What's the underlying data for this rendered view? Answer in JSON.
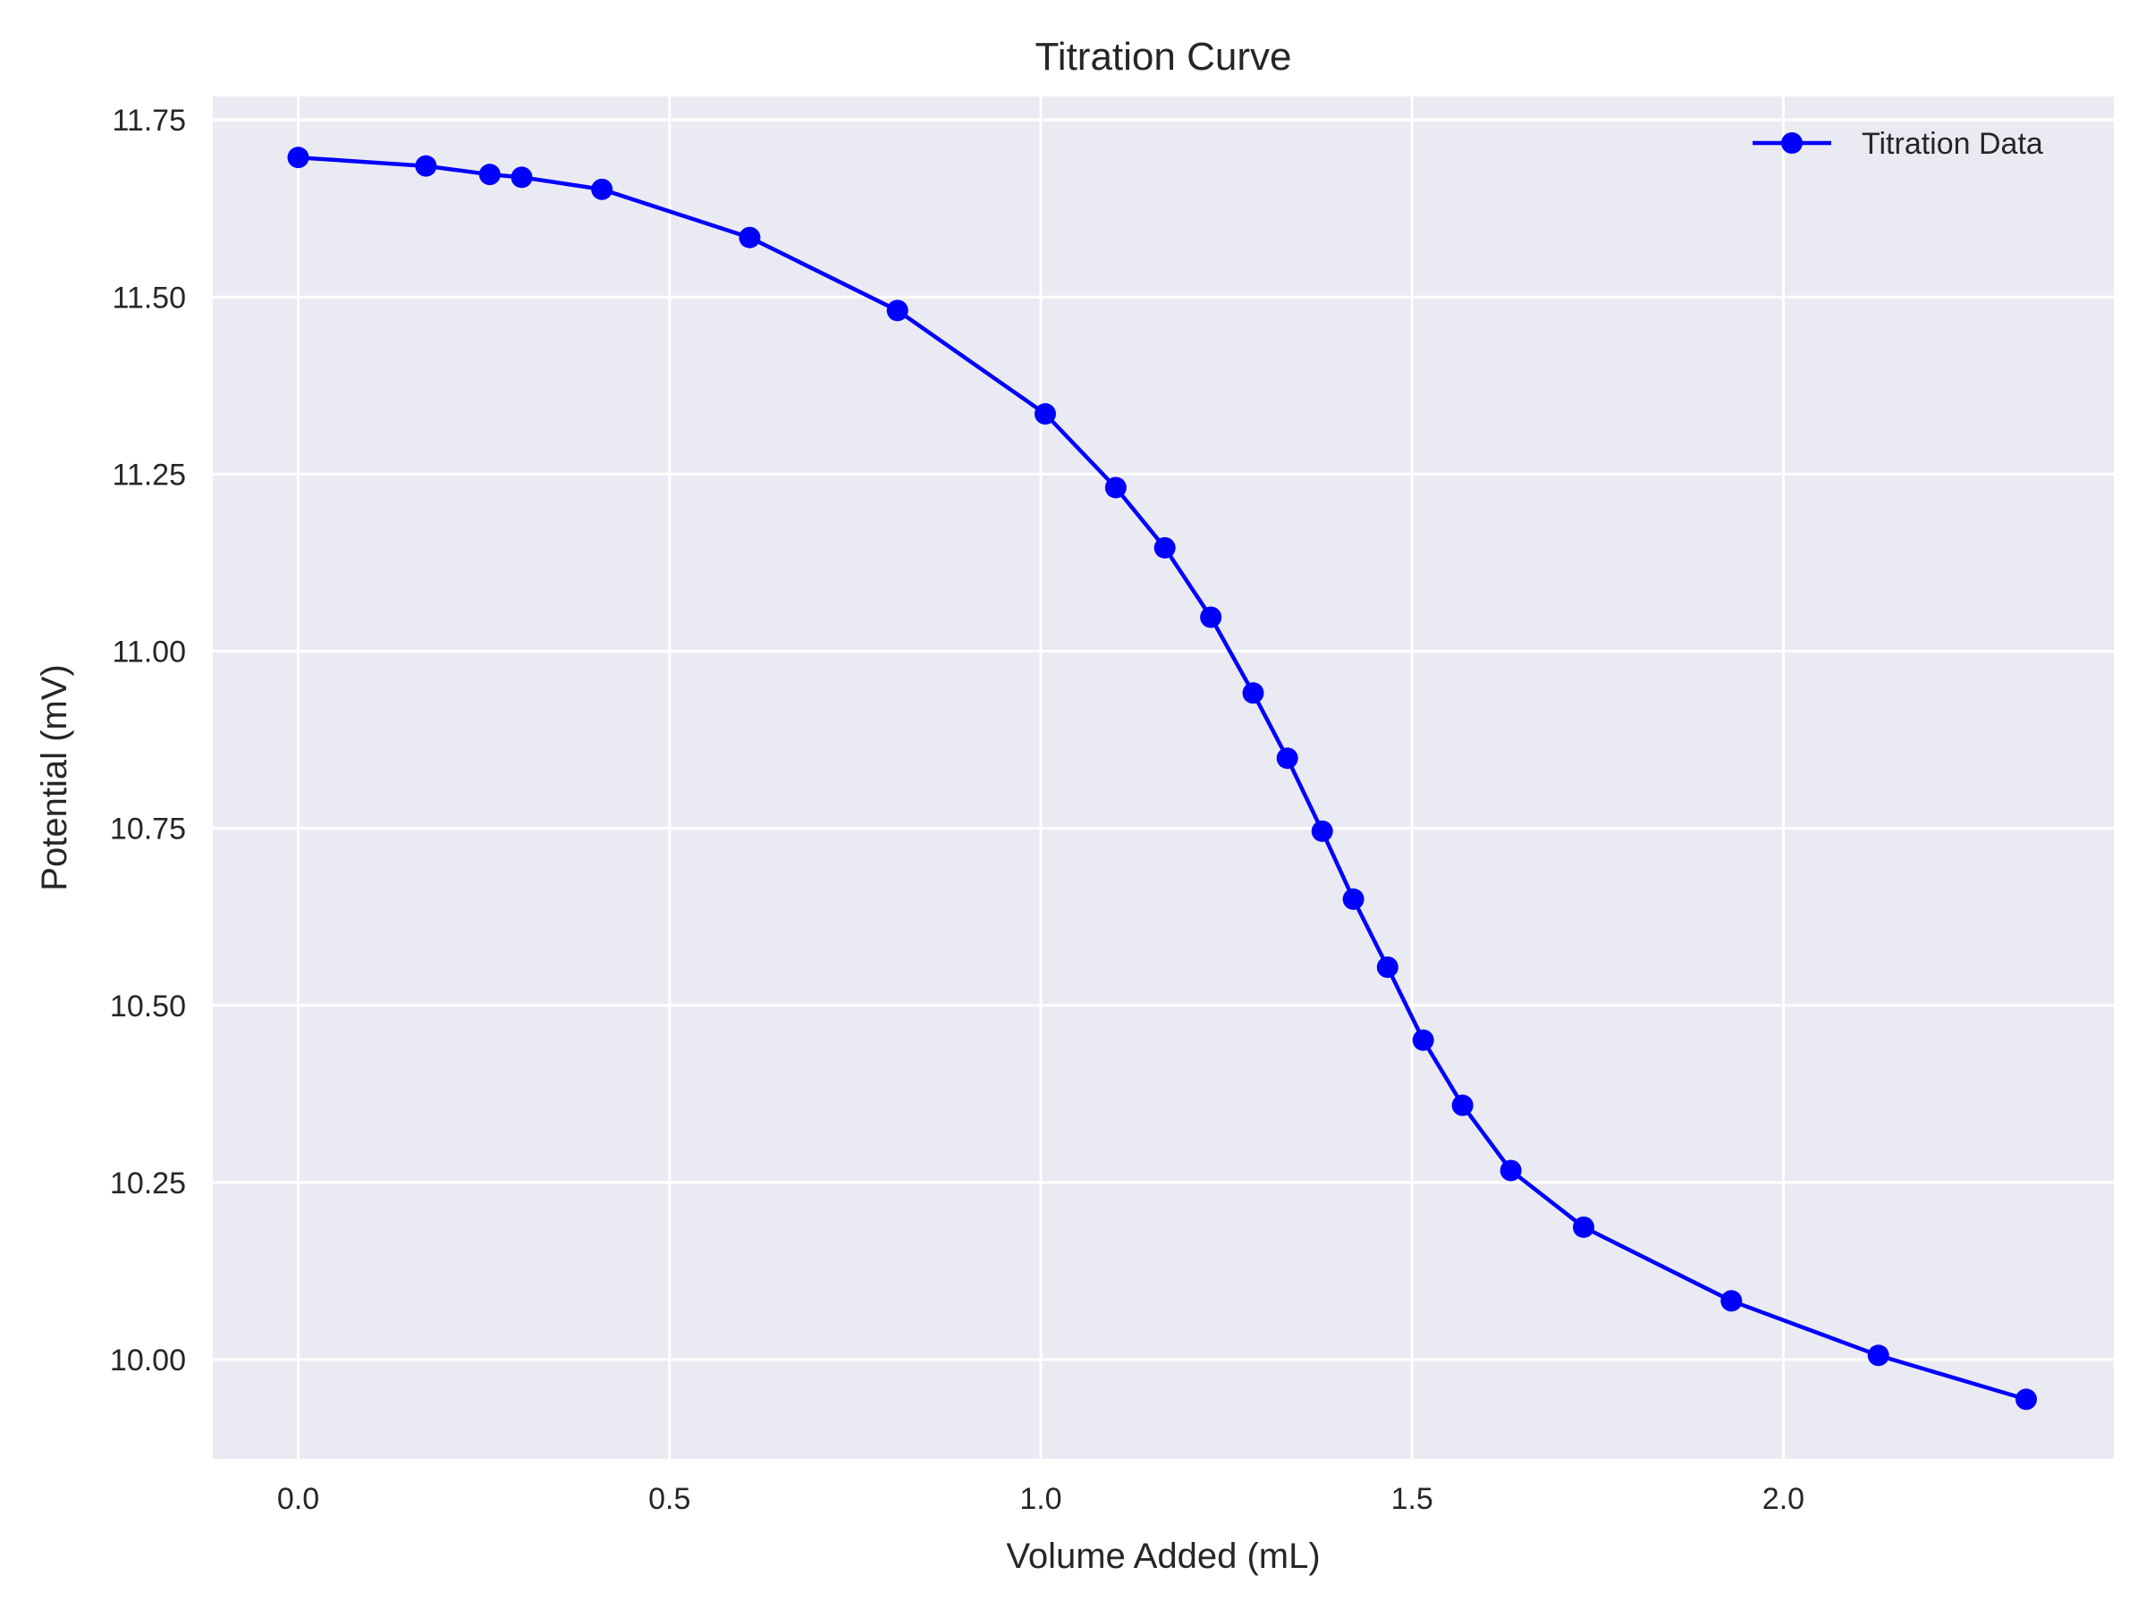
{
  "chart_data": {
    "type": "line",
    "title": "Titration Curve",
    "xlabel": "Volume Added (mL)",
    "ylabel": "Potential (mV)",
    "xlim": [
      -0.115,
      2.445
    ],
    "ylim": [
      9.86,
      11.783
    ],
    "xticks": [
      0.0,
      0.5,
      1.0,
      1.5,
      2.0
    ],
    "xtick_labels": [
      "0.0",
      "0.5",
      "1.0",
      "1.5",
      "2.0"
    ],
    "yticks": [
      10.0,
      10.25,
      10.5,
      10.75,
      11.0,
      11.25,
      11.5,
      11.75
    ],
    "ytick_labels": [
      "10.00",
      "10.25",
      "10.50",
      "10.75",
      "11.00",
      "11.25",
      "11.50",
      "11.75"
    ],
    "grid": true,
    "legend_position": "top-right",
    "series": [
      {
        "name": "Titration Data",
        "color": "#0000ff",
        "marker": "circle",
        "x": [
          0.0,
          0.172,
          0.258,
          0.301,
          0.409,
          0.608,
          0.807,
          1.006,
          1.101,
          1.167,
          1.229,
          1.286,
          1.332,
          1.379,
          1.421,
          1.467,
          1.515,
          1.568,
          1.633,
          1.731,
          1.93,
          2.128,
          2.327
        ],
        "y": [
          11.697,
          11.685,
          11.673,
          11.669,
          11.652,
          11.584,
          11.481,
          11.335,
          11.231,
          11.146,
          11.048,
          10.941,
          10.849,
          10.746,
          10.65,
          10.554,
          10.451,
          10.359,
          10.267,
          10.187,
          10.083,
          10.006,
          9.944
        ]
      }
    ]
  },
  "colors": {
    "plot_background": "#eaeaf2",
    "grid": "#ffffff",
    "series": "#0000ff"
  }
}
